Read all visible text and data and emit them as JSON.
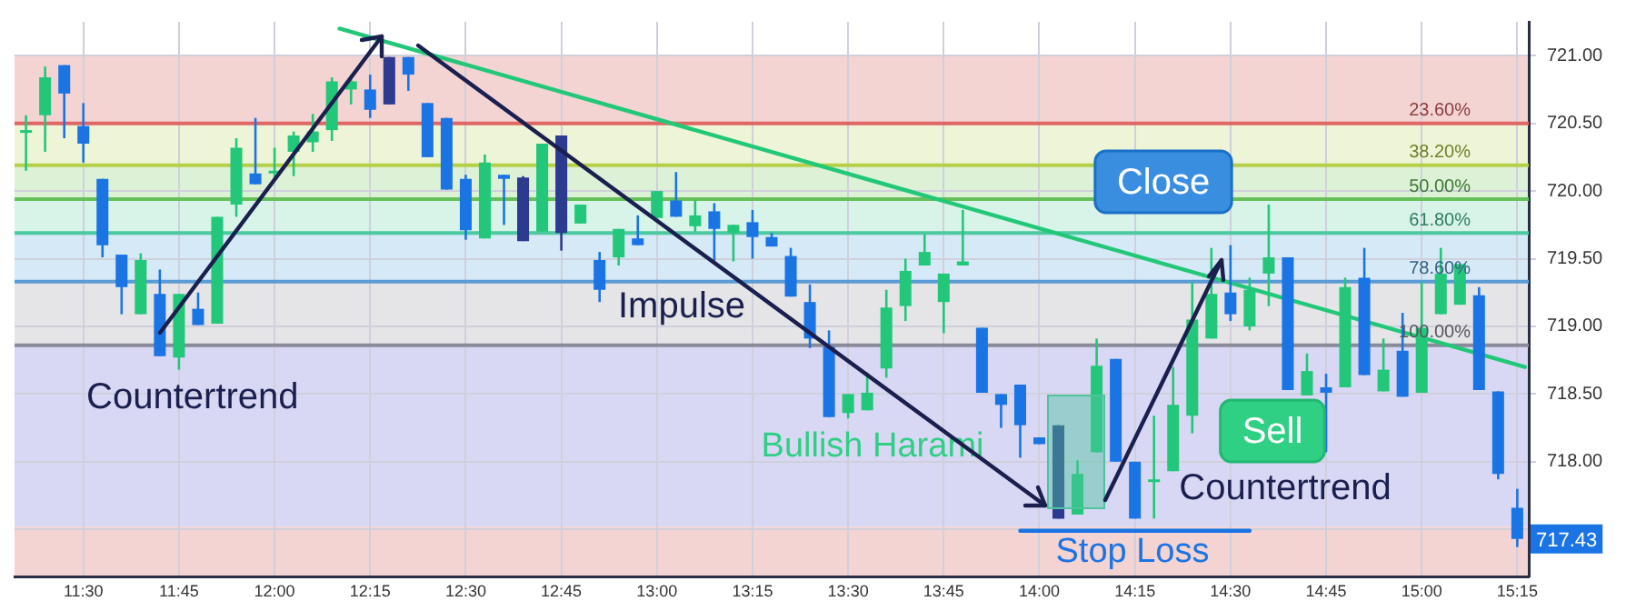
{
  "chart_data": {
    "type": "candlestick",
    "x": [
      11.35,
      11.4,
      11.45,
      11.5,
      11.55,
      11.6,
      11.65,
      11.7,
      11.75,
      11.8,
      11.85,
      11.9,
      11.95,
      12.0,
      12.05,
      12.1,
      12.15,
      12.2,
      12.25,
      12.3,
      12.35,
      12.4,
      12.45,
      12.5,
      12.55,
      12.6,
      12.65,
      12.7,
      12.75,
      12.8,
      12.85,
      12.9,
      12.95,
      13.0,
      13.05,
      13.1,
      13.15,
      13.2,
      13.25,
      13.3,
      13.35,
      13.4,
      13.45,
      13.5,
      13.55,
      13.6,
      13.65,
      13.7,
      13.75,
      13.8,
      13.85,
      13.9,
      13.95,
      14.0,
      14.05,
      14.1,
      14.15,
      14.2,
      14.25,
      14.3,
      14.35,
      14.4,
      14.45,
      14.5,
      14.55,
      14.6,
      14.65,
      14.7,
      14.75,
      14.8,
      14.85,
      14.9,
      14.95,
      15.0,
      15.05,
      15.1,
      15.15,
      15.2,
      15.25
    ],
    "ohlc": [
      [
        720.44,
        720.56,
        720.15,
        720.45
      ],
      [
        720.56,
        720.92,
        720.29,
        720.84
      ],
      [
        720.93,
        720.93,
        720.39,
        720.72
      ],
      [
        720.48,
        720.65,
        720.21,
        720.35
      ],
      [
        720.09,
        720.09,
        719.51,
        719.6
      ],
      [
        719.53,
        719.53,
        719.09,
        719.29
      ],
      [
        719.09,
        719.54,
        719.09,
        719.49
      ],
      [
        719.24,
        719.42,
        718.78,
        718.78
      ],
      [
        718.77,
        719.24,
        718.68,
        719.24
      ],
      [
        719.13,
        719.25,
        719.01,
        719.01
      ],
      [
        719.02,
        719.81,
        719.02,
        719.81
      ],
      [
        719.9,
        720.39,
        719.81,
        720.32
      ],
      [
        720.13,
        720.54,
        720.05,
        720.05
      ],
      [
        720.14,
        720.32,
        720.08,
        720.15
      ],
      [
        720.29,
        720.44,
        720.11,
        720.41
      ],
      [
        720.36,
        720.57,
        720.29,
        720.44
      ],
      [
        720.45,
        720.84,
        720.37,
        720.81
      ],
      [
        720.75,
        720.86,
        720.64,
        720.81
      ],
      [
        720.75,
        720.86,
        720.54,
        720.6
      ],
      [
        720.99,
        720.99,
        720.64,
        720.64
      ],
      [
        720.99,
        720.99,
        720.74,
        720.86
      ],
      [
        720.65,
        720.65,
        720.25,
        720.25
      ],
      [
        720.54,
        720.54,
        720.01,
        720.01
      ],
      [
        720.09,
        720.12,
        719.64,
        719.71
      ],
      [
        719.65,
        720.27,
        719.65,
        720.21
      ],
      [
        720.12,
        720.12,
        719.75,
        720.09
      ],
      [
        720.1,
        720.11,
        719.63,
        719.63
      ],
      [
        719.7,
        720.35,
        719.7,
        720.35
      ],
      [
        720.41,
        720.41,
        719.56,
        719.69
      ],
      [
        719.76,
        719.9,
        719.76,
        719.9
      ],
      [
        719.49,
        719.55,
        719.18,
        719.27
      ],
      [
        719.51,
        719.72,
        719.45,
        719.72
      ],
      [
        719.65,
        719.82,
        719.6,
        719.6
      ],
      [
        719.8,
        720.0,
        719.8,
        720.0
      ],
      [
        719.93,
        720.14,
        719.81,
        719.81
      ],
      [
        719.74,
        719.93,
        719.7,
        719.82
      ],
      [
        719.85,
        719.91,
        719.48,
        719.72
      ],
      [
        719.69,
        719.75,
        719.48,
        719.75
      ],
      [
        719.77,
        719.86,
        719.5,
        719.66
      ],
      [
        719.66,
        719.69,
        719.59,
        719.59
      ],
      [
        719.52,
        719.58,
        719.22,
        719.22
      ],
      [
        719.18,
        719.31,
        718.84,
        718.91
      ],
      [
        718.85,
        718.97,
        718.33,
        718.33
      ],
      [
        718.36,
        718.5,
        718.32,
        718.5
      ],
      [
        718.38,
        718.66,
        718.38,
        718.51
      ],
      [
        718.69,
        719.27,
        718.62,
        719.14
      ],
      [
        719.15,
        719.5,
        719.04,
        719.41
      ],
      [
        719.45,
        719.68,
        719.45,
        719.55
      ],
      [
        719.18,
        719.39,
        718.95,
        719.39
      ],
      [
        719.45,
        719.86,
        719.45,
        719.48
      ],
      [
        718.99,
        718.99,
        718.51,
        718.51
      ],
      [
        718.5,
        718.5,
        718.25,
        718.42
      ],
      [
        718.57,
        718.57,
        718.03,
        718.27
      ],
      [
        718.18,
        718.18,
        718.13,
        718.13
      ],
      [
        718.27,
        718.27,
        717.58,
        717.58
      ],
      [
        717.61,
        718.01,
        717.61,
        717.91
      ],
      [
        718.07,
        718.91,
        718.07,
        718.71
      ],
      [
        718.76,
        718.76,
        718.0,
        718.0
      ],
      [
        718.0,
        718.0,
        717.58,
        717.58
      ],
      [
        717.85,
        718.34,
        717.58,
        717.87
      ],
      [
        717.93,
        718.7,
        717.93,
        718.42
      ],
      [
        718.34,
        719.33,
        718.21,
        719.05
      ],
      [
        718.91,
        719.58,
        718.91,
        719.24
      ],
      [
        719.25,
        719.6,
        719.04,
        719.09
      ],
      [
        719.0,
        719.36,
        718.97,
        719.27
      ],
      [
        719.39,
        719.9,
        719.15,
        719.51
      ],
      [
        719.51,
        719.51,
        718.53,
        718.53
      ],
      [
        718.49,
        718.8,
        718.49,
        718.67
      ],
      [
        718.55,
        718.65,
        718.07,
        718.51
      ],
      [
        718.55,
        719.36,
        718.55,
        719.29
      ],
      [
        719.36,
        719.58,
        718.64,
        718.64
      ],
      [
        718.52,
        718.91,
        718.52,
        718.68
      ],
      [
        718.82,
        719.1,
        718.48,
        718.48
      ],
      [
        718.51,
        719.33,
        718.51,
        718.99
      ],
      [
        719.09,
        719.58,
        719.09,
        719.39
      ],
      [
        719.16,
        719.46,
        719.16,
        719.46
      ],
      [
        719.23,
        719.29,
        718.53,
        718.53
      ],
      [
        718.52,
        718.52,
        717.87,
        717.91
      ],
      [
        717.66,
        717.8,
        717.37,
        717.43
      ]
    ],
    "colors": [
      "#22c77a",
      "#22c77a",
      "#1b74e4",
      "#1b74e4",
      "#1b74e4",
      "#1b74e4",
      "#22c77a",
      "#1b74e4",
      "#22c77a",
      "#1b74e4",
      "#22c77a",
      "#22c77a",
      "#1b74e4",
      "#22c77a",
      "#22c77a",
      "#22c77a",
      "#22c77a",
      "#22c77a",
      "#1b74e4",
      "#2c3a8f",
      "#1b74e4",
      "#1b74e4",
      "#1b74e4",
      "#1b74e4",
      "#22c77a",
      "#1b74e4",
      "#2c3a8f",
      "#22c77a",
      "#2c3a8f",
      "#22c77a",
      "#1b74e4",
      "#22c77a",
      "#1b74e4",
      "#22c77a",
      "#1b74e4",
      "#22c77a",
      "#1b74e4",
      "#22c77a",
      "#1b74e4",
      "#1b74e4",
      "#1b74e4",
      "#1b74e4",
      "#1b74e4",
      "#22c77a",
      "#22c77a",
      "#22c77a",
      "#22c77a",
      "#22c77a",
      "#22c77a",
      "#22c77a",
      "#1b74e4",
      "#1b74e4",
      "#1b74e4",
      "#1b74e4",
      "#2c3a8f",
      "#22c77a",
      "#22c77a",
      "#1b74e4",
      "#1b74e4",
      "#22c77a",
      "#22c77a",
      "#22c77a",
      "#22c77a",
      "#1b74e4",
      "#22c77a",
      "#22c77a",
      "#1b74e4",
      "#22c77a",
      "#1b74e4",
      "#22c77a",
      "#1b74e4",
      "#22c77a",
      "#1b74e4",
      "#22c77a",
      "#22c77a",
      "#22c77a",
      "#1b74e4",
      "#1b74e4",
      "#1b74e4"
    ],
    "series": [
      {
        "type": "line",
        "color": "#22c878",
        "x": [
          12.17,
          15.27
        ],
        "values": [
          721.2,
          718.7
        ]
      },
      {
        "type": "line",
        "color": "#1b74e4",
        "x": [
          13.95,
          14.55
        ],
        "values": [
          717.49,
          717.49
        ]
      }
    ],
    "xlim": [
      11.32,
      15.28
    ],
    "ylim": [
      717.15,
      721.25
    ],
    "xticks": [
      {
        "value": 11.5,
        "label": "11:30"
      },
      {
        "value": 11.75,
        "label": "11:45"
      },
      {
        "value": 12,
        "label": "12:00"
      },
      {
        "value": 12.25,
        "label": "12:15"
      },
      {
        "value": 12.5,
        "label": "12:30"
      },
      {
        "value": 12.75,
        "label": "12:45"
      },
      {
        "value": 13,
        "label": "13:00"
      },
      {
        "value": 13.25,
        "label": "13:15"
      },
      {
        "value": 13.5,
        "label": "13:30"
      },
      {
        "value": 13.75,
        "label": "13:45"
      },
      {
        "value": 14,
        "label": "14:00"
      },
      {
        "value": 14.25,
        "label": "14:15"
      },
      {
        "value": 14.5,
        "label": "14:30"
      },
      {
        "value": 14.75,
        "label": "14:45"
      },
      {
        "value": 15,
        "label": "15:00"
      },
      {
        "value": 15.25,
        "label": "15:15"
      }
    ],
    "yticks": [
      {
        "value": 717.5,
        "label": null
      },
      {
        "value": 718,
        "label": "718.00"
      },
      {
        "value": 718.5,
        "label": "718.50"
      },
      {
        "value": 719,
        "label": "719.00"
      },
      {
        "value": 719.5,
        "label": "719.50"
      },
      {
        "value": 720,
        "label": "720.00"
      },
      {
        "value": 720.5,
        "label": "720.50"
      },
      {
        "value": 721,
        "label": "721.00"
      }
    ],
    "grid": true,
    "bands": [
      {
        "axis": "y",
        "from": 720.5,
        "to": 721,
        "color": "#f4d3d3"
      },
      {
        "axis": "y",
        "from": 720.19,
        "to": 720.5,
        "color": "#eef4d6"
      },
      {
        "axis": "y",
        "from": 719.94,
        "to": 720.19,
        "color": "#dcf1d6"
      },
      {
        "axis": "y",
        "from": 719.69,
        "to": 719.94,
        "color": "#d8f3e8"
      },
      {
        "axis": "y",
        "from": 719.33,
        "to": 719.69,
        "color": "#d6e9f6"
      },
      {
        "axis": "y",
        "from": 718.86,
        "to": 719.33,
        "color": "#e5e5e8"
      },
      {
        "axis": "y",
        "from": 717.52,
        "to": 718.86,
        "color": "#d8d8f5"
      },
      {
        "axis": "y",
        "from": 717.15,
        "to": 717.52,
        "color": "#f4d3d3"
      }
    ],
    "ref_lines": [
      {
        "axis": "y",
        "value": 720.5,
        "color": "#e06666"
      },
      {
        "axis": "y",
        "value": 720.19,
        "color": "#b5d048"
      },
      {
        "axis": "y",
        "value": 719.94,
        "color": "#66c05a"
      },
      {
        "axis": "y",
        "value": 719.69,
        "color": "#4cc9a0"
      },
      {
        "axis": "y",
        "value": 719.33,
        "color": "#5b9bd5"
      },
      {
        "axis": "y",
        "value": 718.86,
        "color": "#8a8a9a"
      }
    ],
    "annotations": [
      {
        "text": "Countertrend",
        "x": 11.7,
        "y": 718.78
      },
      "Impulse",
      "Bullish Harami",
      "Stop Loss",
      "Countertrend",
      "Close",
      "Sell",
      {
        "text": "717.43",
        "x": 15.25,
        "y": 717.43
      },
      "23.60%",
      "38.20%",
      "50.00%",
      "61.80%",
      "78.60%",
      "100.00%"
    ],
    "legend": false
  }
}
